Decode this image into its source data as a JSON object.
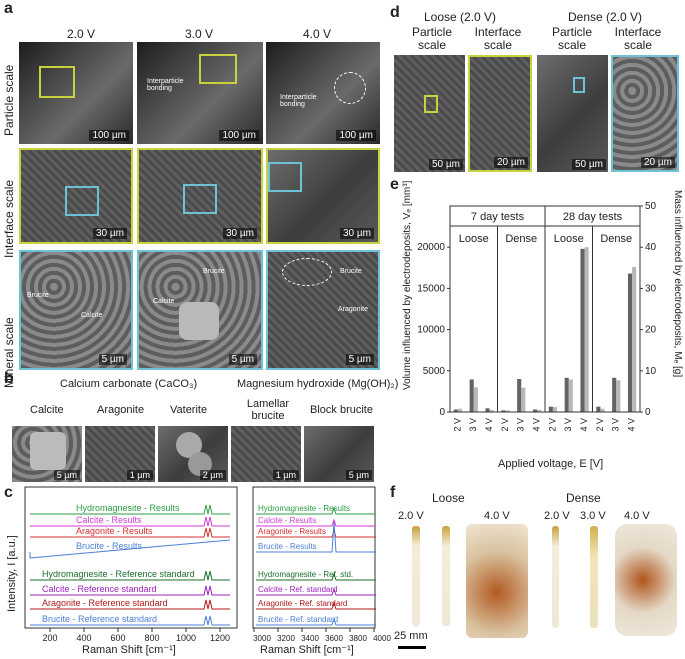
{
  "panels": {
    "a": "a",
    "b": "b",
    "c": "c",
    "d": "d",
    "e": "e",
    "f": "f"
  },
  "panel_a": {
    "columns": [
      "2.0 V",
      "3.0 V",
      "4.0 V"
    ],
    "rows": [
      "Particle scale",
      "Interface scale",
      "Mineral scale"
    ],
    "scalebars": {
      "particle": [
        "100 µm",
        "100 µm",
        "100 µm"
      ],
      "interface": [
        "30 µm",
        "30 µm",
        "30 µm"
      ],
      "mineral": [
        "5 µm",
        "5 µm",
        "5 µm"
      ]
    },
    "annotations": {
      "interparticle_a": "Interparticle bonding",
      "interparticle_b": "Interparticle bonding",
      "brucite": "Brucite",
      "calcite": "Calcite",
      "aragonite": "Aragonite"
    }
  },
  "panel_b": {
    "group1": "Calcium carbonate (CaCO₃)",
    "group2": "Magnesium hydroxide (Mg(OH)₂)",
    "labels": [
      "Calcite",
      "Aragonite",
      "Vaterite",
      "Lamellar brucite",
      "Block brucite"
    ],
    "scalebars": [
      "5 µm",
      "1 µm",
      "2 µm",
      "1 µm",
      "5 µm"
    ]
  },
  "panel_c": {
    "ylabel": "Intensity, I [a.u.]",
    "xlabel": "Raman Shift [cm⁻¹]",
    "left_ticks": [
      "200",
      "400",
      "600",
      "800",
      "1000",
      "1200"
    ],
    "right_ticks": [
      "3000",
      "3200",
      "3400",
      "3600",
      "3800",
      "4000"
    ],
    "left_traces": [
      {
        "name": "Hydromagnesite - Results",
        "color": "#2e9e44"
      },
      {
        "name": "Calcite - Results",
        "color": "#d63ad6"
      },
      {
        "name": "Aragonite - Results",
        "color": "#d63030"
      },
      {
        "name": "Brucite - Results",
        "color": "#4a7fd6"
      },
      {
        "name": "Hydromagnesite - Reference standard",
        "color": "#1a6e2a"
      },
      {
        "name": "Calcite - Reference standard",
        "color": "#a020c0"
      },
      {
        "name": "Aragonite - Reference standard",
        "color": "#b01818"
      },
      {
        "name": "Brucite - Reference standard",
        "color": "#4a7fd6"
      }
    ],
    "right_traces": [
      {
        "name": "Hydromagnesite - Results",
        "color": "#2e9e44"
      },
      {
        "name": "Calcite - Results",
        "color": "#d63ad6"
      },
      {
        "name": "Aragonite - Results",
        "color": "#d63030"
      },
      {
        "name": "Brucite - Results",
        "color": "#4a7fd6"
      },
      {
        "name": "Hydromagnesite - Ref. std.",
        "color": "#1a6e2a"
      },
      {
        "name": "Calcite - Ref. standard",
        "color": "#a020c0"
      },
      {
        "name": "Aragonite - Ref. standard",
        "color": "#b01818"
      },
      {
        "name": "Brucite - Ref. standard",
        "color": "#4a7fd6"
      }
    ]
  },
  "panel_d": {
    "groups": [
      "Loose (2.0 V)",
      "Dense (2.0 V)"
    ],
    "sub": [
      "Particle scale",
      "Interface scale",
      "Particle scale",
      "Interface scale"
    ],
    "scalebars": [
      "50 µm",
      "20 µm",
      "50 µm",
      "20 µm"
    ]
  },
  "chart_data": {
    "type": "bar",
    "ylabel": "Volume influenced by electrodeposits, Vₑ [mm³]",
    "y2label": "Mass influenced by electrodeposits, Mₑ [g]",
    "xlabel": "Applied voltage, E [V]",
    "ylim": [
      0,
      25000
    ],
    "y2lim": [
      0,
      50
    ],
    "yticks": [
      "0",
      "5000",
      "10000",
      "15000",
      "20000"
    ],
    "y2ticks": [
      "0",
      "10",
      "20",
      "30",
      "40",
      "50"
    ],
    "periods": [
      "7 day tests",
      "28 day tests"
    ],
    "groups": [
      "Loose",
      "Dense",
      "Loose",
      "Dense"
    ],
    "categories": [
      "2 V",
      "3 V",
      "4 V",
      "2 V",
      "3 V",
      "4 V",
      "2 V",
      "3 V",
      "4 V",
      "2 V",
      "3 V",
      "4 V"
    ],
    "series": [
      {
        "name": "",
        "color": "#636363",
        "values": [
          300,
          3950,
          450,
          200,
          4000,
          300,
          650,
          4150,
          19800,
          650,
          4150,
          16800
        ]
      },
      {
        "name": "",
        "color": "#b8b8b8",
        "values": [
          400,
          3000,
          250,
          200,
          2950,
          250,
          600,
          3950,
          20000,
          400,
          3850,
          17600
        ]
      }
    ]
  },
  "panel_f": {
    "groups": [
      "Loose",
      "Dense"
    ],
    "voltages": [
      "2.0 V",
      "4.0 V",
      "2.0 V",
      "3.0 V",
      "4.0 V"
    ],
    "scalebar": "25 mm"
  }
}
